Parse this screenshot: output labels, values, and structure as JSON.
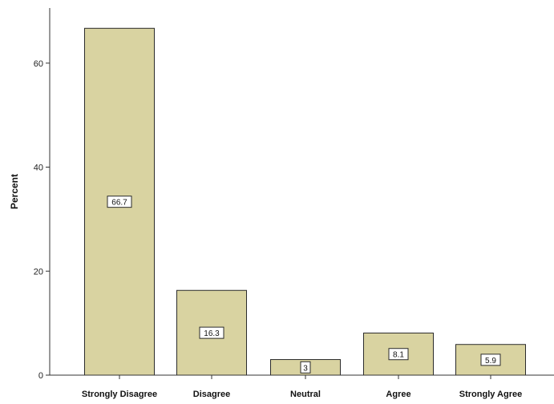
{
  "chart_data": {
    "type": "bar",
    "title": "",
    "xlabel": "",
    "ylabel": "Percent",
    "categories": [
      "Strongly Disagree",
      "Disagree",
      "Neutral",
      "Agree",
      "Strongly Agree"
    ],
    "values": [
      66.7,
      16.3,
      3,
      8.1,
      5.9
    ],
    "data_labels": [
      "66.7",
      "16.3",
      "3",
      "8.1",
      "5.9"
    ],
    "yticks": [
      0,
      20,
      40,
      60
    ],
    "ylim": [
      0,
      70.6
    ],
    "grid": false,
    "legend": "none",
    "colors": {
      "bar_fill": "#d9d3a1",
      "bar_stroke": "#2b2b2b",
      "axis": "#333333",
      "label_box": "#ffffff"
    }
  }
}
